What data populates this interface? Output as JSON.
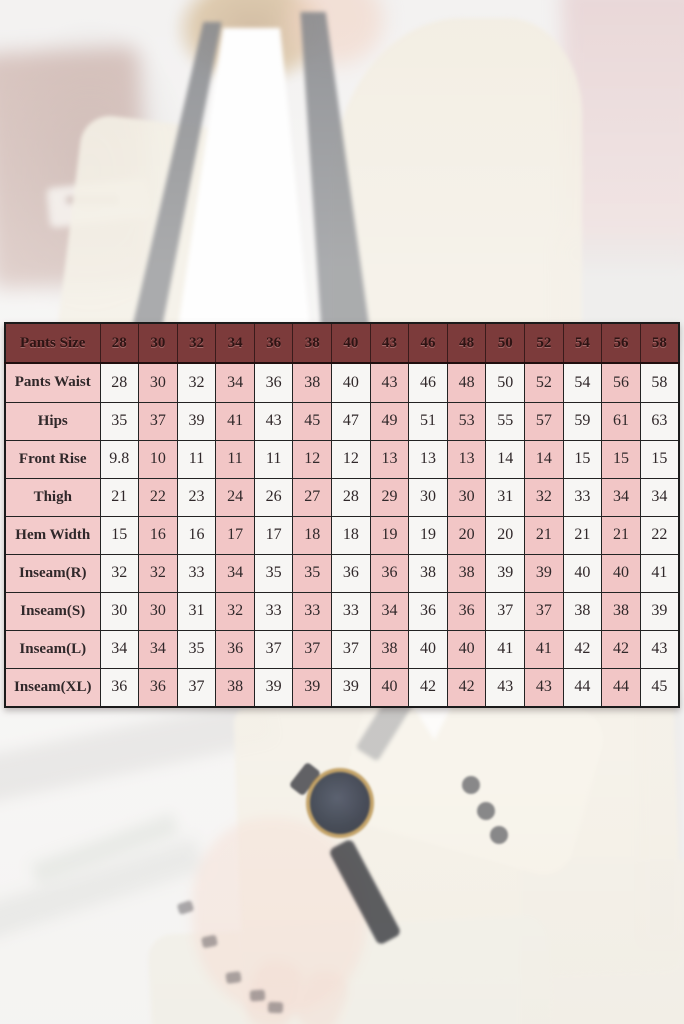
{
  "chart_data": {
    "type": "table",
    "header_row": [
      "Pants Size",
      "28",
      "30",
      "32",
      "34",
      "36",
      "38",
      "40",
      "43",
      "46",
      "48",
      "50",
      "52",
      "54",
      "56",
      "58"
    ],
    "rows": [
      [
        "Pants Waist",
        "28",
        "30",
        "32",
        "34",
        "36",
        "38",
        "40",
        "43",
        "46",
        "48",
        "50",
        "52",
        "54",
        "56",
        "58"
      ],
      [
        "Hips",
        "35",
        "37",
        "39",
        "41",
        "43",
        "45",
        "47",
        "49",
        "51",
        "53",
        "55",
        "57",
        "59",
        "61",
        "63"
      ],
      [
        "Front Rise",
        "9.8",
        "10",
        "11",
        "11",
        "11",
        "12",
        "12",
        "13",
        "13",
        "13",
        "14",
        "14",
        "15",
        "15",
        "15"
      ],
      [
        "Thigh",
        "21",
        "22",
        "23",
        "24",
        "26",
        "27",
        "28",
        "29",
        "30",
        "30",
        "31",
        "32",
        "33",
        "34",
        "34"
      ],
      [
        "Hem Width",
        "15",
        "16",
        "16",
        "17",
        "17",
        "18",
        "18",
        "19",
        "19",
        "20",
        "20",
        "21",
        "21",
        "21",
        "22"
      ],
      [
        "Inseam(R)",
        "32",
        "32",
        "33",
        "34",
        "35",
        "35",
        "36",
        "36",
        "38",
        "38",
        "39",
        "39",
        "40",
        "40",
        "41"
      ],
      [
        "Inseam(S)",
        "30",
        "30",
        "31",
        "32",
        "33",
        "33",
        "33",
        "34",
        "36",
        "36",
        "37",
        "37",
        "38",
        "38",
        "39"
      ],
      [
        "Inseam(L)",
        "34",
        "34",
        "35",
        "36",
        "37",
        "37",
        "37",
        "38",
        "40",
        "40",
        "41",
        "41",
        "42",
        "42",
        "43"
      ],
      [
        "Inseam(XL)",
        "36",
        "36",
        "37",
        "38",
        "39",
        "39",
        "39",
        "40",
        "42",
        "42",
        "43",
        "43",
        "44",
        "44",
        "45"
      ]
    ],
    "layout": {
      "grid": true,
      "label_column": "measurements",
      "alternating_column_shading": true
    }
  },
  "style": {
    "header_bg": "#7c3b3b",
    "header_text": "#2e1414",
    "label_cell_bg": "#f3cbcb",
    "alt_cell_bg": "#f2c6c6",
    "plain_cell_bg": "#f7f6f4",
    "grid_border": "#232323",
    "cell_text": "#30282a",
    "watch_gold": "#b9924c",
    "suit_cream": "#e9e1cd"
  }
}
